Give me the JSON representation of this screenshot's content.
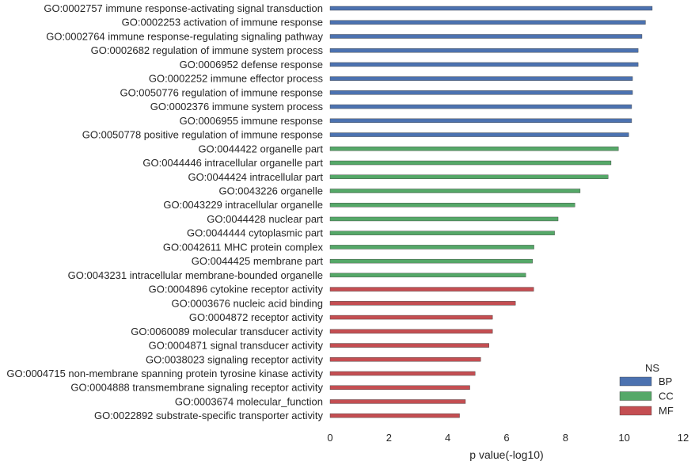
{
  "chart_data": {
    "type": "bar",
    "orientation": "horizontal",
    "title": "",
    "xlabel": "p value(-log10)",
    "ylabel": "",
    "xlim": [
      0,
      12
    ],
    "xticks": [
      "0",
      "2",
      "4",
      "6",
      "8",
      "10",
      "12"
    ],
    "grid": false,
    "legend": {
      "title": "NS",
      "position": "bottom-right",
      "entries": [
        {
          "name": "BP",
          "color": "#4c72b0"
        },
        {
          "name": "CC",
          "color": "#55a868"
        },
        {
          "name": "MF",
          "color": "#c44e52"
        }
      ]
    },
    "categories": [
      {
        "label": "GO:0002757 immune response-activating signal transduction",
        "ns": "BP",
        "value": 10.95
      },
      {
        "label": "GO:0002253 activation of immune response",
        "ns": "BP",
        "value": 10.72
      },
      {
        "label": "GO:0002764 immune response-regulating signaling pathway",
        "ns": "BP",
        "value": 10.6
      },
      {
        "label": "GO:0002682 regulation of immune system process",
        "ns": "BP",
        "value": 10.47
      },
      {
        "label": "GO:0006952 defense response",
        "ns": "BP",
        "value": 10.47
      },
      {
        "label": "GO:0002252 immune effector process",
        "ns": "BP",
        "value": 10.28
      },
      {
        "label": "GO:0050776 regulation of immune response",
        "ns": "BP",
        "value": 10.28
      },
      {
        "label": "GO:0002376 immune system process",
        "ns": "BP",
        "value": 10.25
      },
      {
        "label": "GO:0006955 immune response",
        "ns": "BP",
        "value": 10.25
      },
      {
        "label": "GO:0050778 positive regulation of immune response",
        "ns": "BP",
        "value": 10.15
      },
      {
        "label": "GO:0044422 organelle part",
        "ns": "CC",
        "value": 9.8
      },
      {
        "label": "GO:0044446 intracellular organelle part",
        "ns": "CC",
        "value": 9.55
      },
      {
        "label": "GO:0044424 intracellular part",
        "ns": "CC",
        "value": 9.45
      },
      {
        "label": "GO:0043226 organelle",
        "ns": "CC",
        "value": 8.5
      },
      {
        "label": "GO:0043229 intracellular organelle",
        "ns": "CC",
        "value": 8.32
      },
      {
        "label": "GO:0044428 nuclear part",
        "ns": "CC",
        "value": 7.75
      },
      {
        "label": "GO:0044444 cytoplasmic part",
        "ns": "CC",
        "value": 7.63
      },
      {
        "label": "GO:0042611 MHC protein complex",
        "ns": "CC",
        "value": 6.93
      },
      {
        "label": "GO:0044425 membrane part",
        "ns": "CC",
        "value": 6.88
      },
      {
        "label": "GO:0043231 intracellular membrane-bounded organelle",
        "ns": "CC",
        "value": 6.65
      },
      {
        "label": "GO:0004896 cytokine receptor activity",
        "ns": "MF",
        "value": 6.92
      },
      {
        "label": "GO:0003676 nucleic acid binding",
        "ns": "MF",
        "value": 6.3
      },
      {
        "label": "GO:0004872 receptor activity",
        "ns": "MF",
        "value": 5.52
      },
      {
        "label": "GO:0060089 molecular transducer activity",
        "ns": "MF",
        "value": 5.52
      },
      {
        "label": "GO:0004871 signal transducer activity",
        "ns": "MF",
        "value": 5.4
      },
      {
        "label": "GO:0038023 signaling receptor activity",
        "ns": "MF",
        "value": 5.12
      },
      {
        "label": "GO:0004715 non-membrane spanning protein tyrosine kinase activity",
        "ns": "MF",
        "value": 4.93
      },
      {
        "label": "GO:0004888 transmembrane signaling receptor activity",
        "ns": "MF",
        "value": 4.75
      },
      {
        "label": "GO:0003674 molecular_function",
        "ns": "MF",
        "value": 4.6
      },
      {
        "label": "GO:0022892 substrate-specific transporter activity",
        "ns": "MF",
        "value": 4.4
      }
    ]
  }
}
